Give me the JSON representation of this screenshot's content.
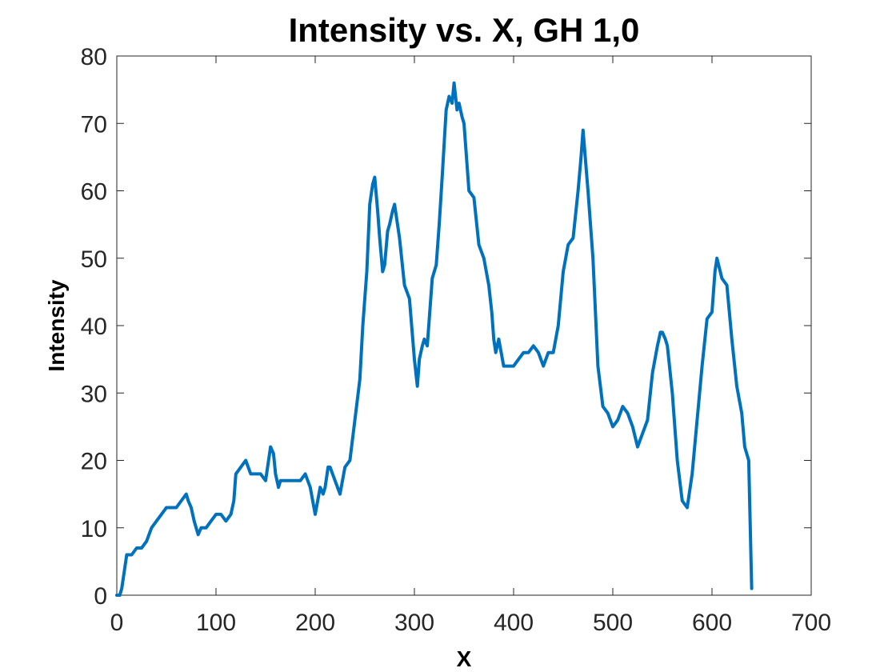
{
  "chart_data": {
    "type": "line",
    "title": "Intensity vs. X, GH 1,0",
    "xlabel": "X",
    "ylabel": "Intensity",
    "xlim": [
      0,
      700
    ],
    "ylim": [
      0,
      80
    ],
    "xticks": [
      0,
      100,
      200,
      300,
      400,
      500,
      600,
      700
    ],
    "yticks": [
      0,
      10,
      20,
      30,
      40,
      50,
      60,
      70,
      80
    ],
    "grid": false,
    "line_color": "#0072BD",
    "series": [
      {
        "x": [
          0,
          3,
          5,
          10,
          15,
          20,
          25,
          30,
          35,
          40,
          45,
          50,
          55,
          60,
          65,
          70,
          72,
          75,
          78,
          80,
          82,
          85,
          90,
          95,
          100,
          105,
          110,
          115,
          118,
          120,
          125,
          130,
          135,
          140,
          145,
          150,
          155,
          158,
          160,
          163,
          165,
          170,
          175,
          180,
          185,
          190,
          195,
          200,
          205,
          208,
          210,
          213,
          215,
          220,
          225,
          230,
          235,
          240,
          245,
          248,
          252,
          255,
          258,
          260,
          263,
          265,
          268,
          270,
          273,
          275,
          278,
          280,
          283,
          285,
          290,
          295,
          300,
          303,
          305,
          308,
          310,
          313,
          318,
          322,
          325,
          328,
          332,
          335,
          338,
          340,
          343,
          345,
          348,
          350,
          355,
          360,
          365,
          370,
          375,
          378,
          380,
          382,
          385,
          390,
          395,
          400,
          405,
          410,
          415,
          420,
          425,
          430,
          435,
          440,
          445,
          450,
          455,
          460,
          465,
          468,
          470,
          475,
          480,
          485,
          490,
          495,
          500,
          505,
          510,
          515,
          520,
          525,
          530,
          535,
          540,
          545,
          548,
          550,
          553,
          555,
          560,
          565,
          570,
          575,
          580,
          585,
          590,
          595,
          600,
          603,
          605,
          610,
          615,
          620,
          625,
          630,
          633,
          635,
          637,
          640
        ],
        "y": [
          0,
          0,
          1,
          6,
          6,
          7,
          7,
          8,
          10,
          11,
          12,
          13,
          13,
          13,
          14,
          15,
          14,
          13,
          11,
          10,
          9,
          10,
          10,
          11,
          12,
          12,
          11,
          12,
          14,
          18,
          19,
          20,
          18,
          18,
          18,
          17,
          22,
          21,
          18,
          16,
          17,
          17,
          17,
          17,
          17,
          18,
          16,
          12,
          16,
          15,
          16,
          19,
          19,
          17,
          15,
          19,
          20,
          26,
          32,
          40,
          48,
          58,
          61,
          62,
          57,
          53,
          48,
          49,
          54,
          55,
          57,
          58,
          55,
          53,
          46,
          44,
          35,
          31,
          35,
          37,
          38,
          37,
          47,
          49,
          55,
          62,
          72,
          74,
          73,
          76,
          72,
          73,
          71,
          70,
          60,
          59,
          52,
          50,
          46,
          42,
          38,
          36,
          38,
          34,
          34,
          34,
          35,
          36,
          36,
          37,
          36,
          34,
          36,
          36,
          40,
          48,
          52,
          53,
          60,
          65,
          69,
          60,
          50,
          34,
          28,
          27,
          25,
          26,
          28,
          27,
          25,
          22,
          24,
          26,
          33,
          37,
          39,
          39,
          38,
          37,
          30,
          20,
          14,
          13,
          18,
          26,
          34,
          41,
          42,
          48,
          50,
          47,
          46,
          38,
          31,
          27,
          22,
          21,
          20,
          1
        ]
      }
    ]
  }
}
